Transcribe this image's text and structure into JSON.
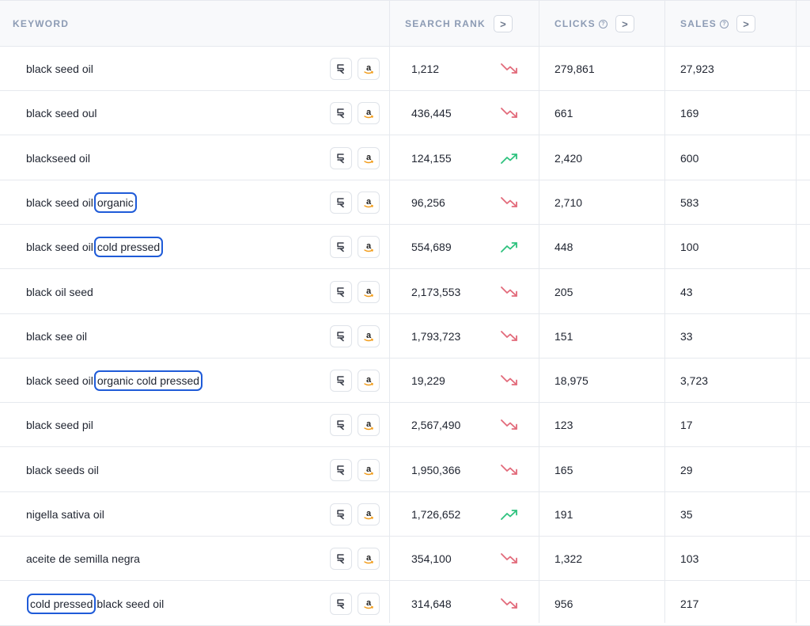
{
  "header": {
    "keyword": "KEYWORD",
    "search_rank": "SEARCH RANK",
    "clicks": "CLICKS",
    "sales": "SALES",
    "help_glyph": "?",
    "sort_glyph": ">"
  },
  "colors": {
    "down": "#e26a7a",
    "up": "#2ec27e",
    "highlight_border": "#1f5bd8"
  },
  "rows": [
    {
      "parts": [
        {
          "t": "black seed oil",
          "hl": false
        }
      ],
      "rank": "1,212",
      "trend": "down",
      "clicks": "279,861",
      "sales": "27,923"
    },
    {
      "parts": [
        {
          "t": "black seed oul",
          "hl": false
        }
      ],
      "rank": "436,445",
      "trend": "down",
      "clicks": "661",
      "sales": "169"
    },
    {
      "parts": [
        {
          "t": "blackseed oil",
          "hl": false
        }
      ],
      "rank": "124,155",
      "trend": "up",
      "clicks": "2,420",
      "sales": "600"
    },
    {
      "parts": [
        {
          "t": "black seed oil",
          "hl": false
        },
        {
          "t": "organic",
          "hl": true
        }
      ],
      "rank": "96,256",
      "trend": "down",
      "clicks": "2,710",
      "sales": "583"
    },
    {
      "parts": [
        {
          "t": "black seed oil",
          "hl": false
        },
        {
          "t": "cold pressed",
          "hl": true
        }
      ],
      "rank": "554,689",
      "trend": "up",
      "clicks": "448",
      "sales": "100"
    },
    {
      "parts": [
        {
          "t": "black oil seed",
          "hl": false
        }
      ],
      "rank": "2,173,553",
      "trend": "down",
      "clicks": "205",
      "sales": "43"
    },
    {
      "parts": [
        {
          "t": "black see oil",
          "hl": false
        }
      ],
      "rank": "1,793,723",
      "trend": "down",
      "clicks": "151",
      "sales": "33"
    },
    {
      "parts": [
        {
          "t": "black seed oil",
          "hl": false
        },
        {
          "t": "organic cold pressed",
          "hl": true
        }
      ],
      "rank": "19,229",
      "trend": "down",
      "clicks": "18,975",
      "sales": "3,723"
    },
    {
      "parts": [
        {
          "t": "black seed pil",
          "hl": false
        }
      ],
      "rank": "2,567,490",
      "trend": "down",
      "clicks": "123",
      "sales": "17"
    },
    {
      "parts": [
        {
          "t": "black seeds oil",
          "hl": false
        }
      ],
      "rank": "1,950,366",
      "trend": "down",
      "clicks": "165",
      "sales": "29"
    },
    {
      "parts": [
        {
          "t": "nigella sativa oil",
          "hl": false
        }
      ],
      "rank": "1,726,652",
      "trend": "up",
      "clicks": "191",
      "sales": "35"
    },
    {
      "parts": [
        {
          "t": "aceite de semilla negra",
          "hl": false
        }
      ],
      "rank": "354,100",
      "trend": "down",
      "clicks": "1,322",
      "sales": "103"
    },
    {
      "parts": [
        {
          "t": "cold pressed",
          "hl": true
        },
        {
          "t": "black seed oil",
          "hl": false
        }
      ],
      "rank": "314,648",
      "trend": "down",
      "clicks": "956",
      "sales": "217"
    }
  ]
}
